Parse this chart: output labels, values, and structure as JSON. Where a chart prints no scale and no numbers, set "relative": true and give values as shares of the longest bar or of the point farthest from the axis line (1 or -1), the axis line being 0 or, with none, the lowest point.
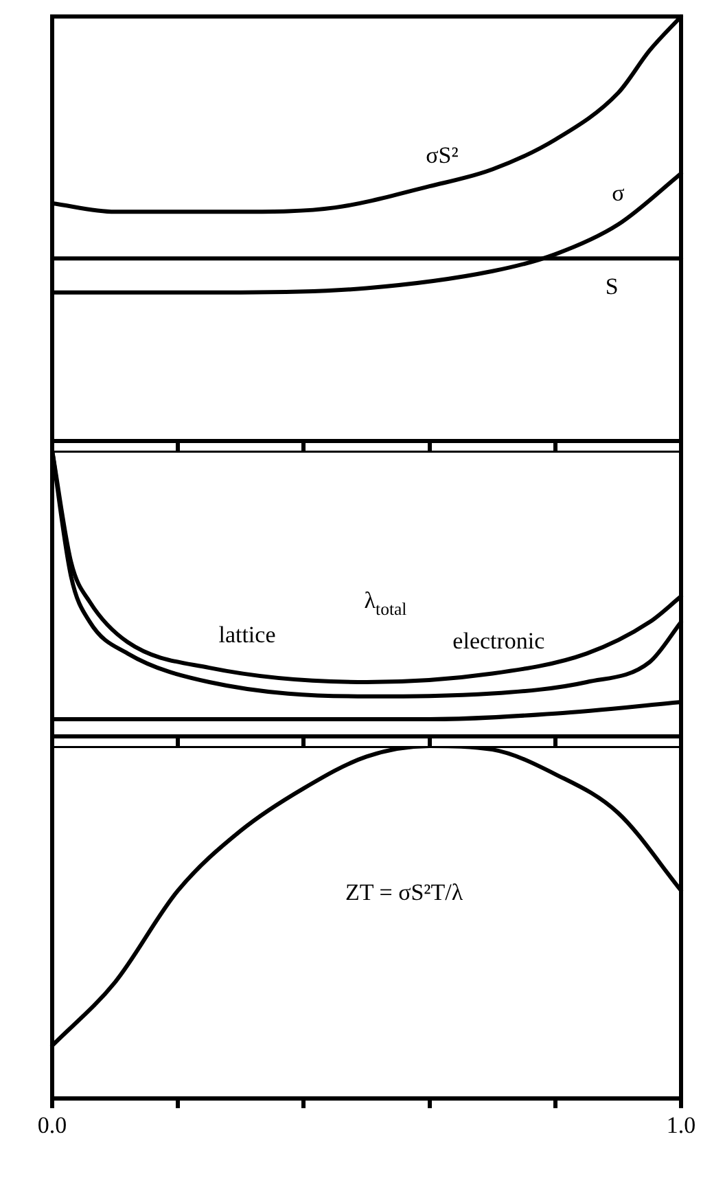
{
  "chart_data": [
    {
      "type": "line",
      "relative": true,
      "xlim": [
        0,
        1
      ],
      "xticks": [
        {
          "value": 0,
          "label": null
        },
        {
          "value": 0.2,
          "label": null
        },
        {
          "value": 0.4,
          "label": null
        },
        {
          "value": 0.6,
          "label": null
        },
        {
          "value": 0.8,
          "label": null
        },
        {
          "value": 1,
          "label": null
        }
      ],
      "tick_labels": false,
      "grid": false,
      "legend": false,
      "marker": "none",
      "line_style": "solid",
      "series": [
        {
          "color": "#000000",
          "x": [
            0,
            0.1,
            0.3,
            0.45,
            0.6,
            0.7,
            0.8,
            0.9,
            0.95,
            1
          ],
          "values": [
            0.56,
            0.54,
            0.54,
            0.55,
            0.6,
            0.64,
            0.71,
            0.82,
            0.92,
            1
          ]
        },
        {
          "color": "#000000",
          "x": [
            0,
            0.3,
            0.5,
            0.7,
            0.8,
            0.9,
            1
          ],
          "values": [
            0.35,
            0.35,
            0.36,
            0.4,
            0.44,
            0.51,
            0.63
          ]
        },
        {
          "color": "#000000",
          "x": [
            0,
            1
          ],
          "values": [
            0.43,
            0.43
          ]
        }
      ],
      "annotations": [
        "σS²",
        "σ",
        "S"
      ]
    },
    {
      "type": "line",
      "relative": true,
      "xlim": [
        0,
        1
      ],
      "xticks": [
        {
          "value": 0,
          "label": null
        },
        {
          "value": 0.2,
          "label": null
        },
        {
          "value": 0.4,
          "label": null
        },
        {
          "value": 0.6,
          "label": null
        },
        {
          "value": 0.8,
          "label": null
        },
        {
          "value": 1,
          "label": null
        }
      ],
      "tick_labels": false,
      "grid": false,
      "legend": false,
      "marker": "none",
      "line_style": "solid",
      "series": [
        {
          "color": "#000000",
          "x": [
            0,
            0.03,
            0.06,
            0.12,
            0.25,
            0.5,
            0.7,
            0.85,
            0.95,
            1
          ],
          "values": [
            1,
            0.61,
            0.47,
            0.33,
            0.24,
            0.19,
            0.22,
            0.29,
            0.4,
            0.49
          ]
        },
        {
          "color": "#000000",
          "x": [
            0,
            0.03,
            0.06,
            0.12,
            0.25,
            0.5,
            0.7,
            0.85,
            0.95,
            1
          ],
          "values": [
            1,
            0.56,
            0.4,
            0.29,
            0.19,
            0.14,
            0.15,
            0.19,
            0.26,
            0.4
          ]
        },
        {
          "color": "#000000",
          "x": [
            0,
            0.6,
            0.8,
            1
          ],
          "values": [
            0.06,
            0.06,
            0.08,
            0.12
          ]
        }
      ],
      "annotations": [
        "lattice",
        "λ$_{total}$",
        "electronic"
      ]
    },
    {
      "type": "line",
      "relative": true,
      "xlim": [
        0,
        1
      ],
      "xticks": [
        {
          "value": 0,
          "label": "0.0"
        },
        {
          "value": 0.2,
          "label": null
        },
        {
          "value": 0.4,
          "label": null
        },
        {
          "value": 0.6,
          "label": null
        },
        {
          "value": 0.8,
          "label": null
        },
        {
          "value": 1,
          "label": "1.0"
        }
      ],
      "tick_labels": "x",
      "grid": false,
      "legend": false,
      "marker": "none",
      "line_style": "solid",
      "series": [
        {
          "color": "#000000",
          "x": [
            0,
            0.1,
            0.2,
            0.3,
            0.4,
            0.5,
            0.6,
            0.7,
            0.8,
            0.9,
            1
          ],
          "values": [
            0.15,
            0.33,
            0.59,
            0.76,
            0.88,
            0.97,
            1,
            0.99,
            0.92,
            0.81,
            0.59
          ]
        }
      ],
      "annotations": [
        "ZT = σS²T/λ"
      ]
    }
  ]
}
